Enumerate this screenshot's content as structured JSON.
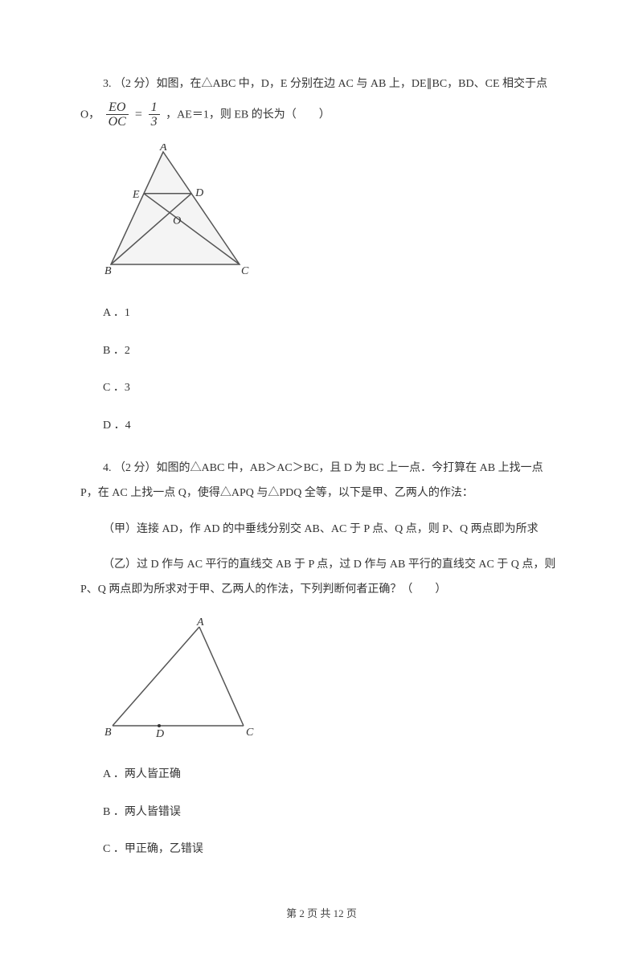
{
  "q3": {
    "line1": "3. （2 分）如图，在△ABC 中，D，E 分别在边 AC 与 AB 上，DE∥BC，BD、CE 相交于点",
    "line2_prefix": "O，",
    "line2_suffix": "，AE＝1，则 EB 的长为（　　）",
    "frac_left_num": "EO",
    "frac_left_den": "OC",
    "eq_sign": "=",
    "frac_right_num": "1",
    "frac_right_den": "3",
    "options": {
      "a": "A ．1",
      "b": "B ．2",
      "c": "C ．3",
      "d": "D ．4"
    },
    "figure": {
      "labels": {
        "A": "A",
        "B": "B",
        "C": "C",
        "D": "D",
        "E": "E",
        "O": "O"
      },
      "stroke": "#555",
      "fill": "#f4f4f4",
      "label_font": "italic 14px 'Times New Roman', serif"
    }
  },
  "q4": {
    "para1": "4. （2 分）如图的△ABC 中，AB＞AC＞BC，且 D 为 BC 上一点．今打算在 AB 上找一点 P，在 AC 上找一点 Q，使得△APQ 与△PDQ 全等，以下是甲、乙两人的作法：",
    "para2": "（甲）连接 AD，作 AD 的中垂线分别交 AB、AC 于 P 点、Q 点，则 P、Q 两点即为所求",
    "para3": "（乙）过 D 作与 AC 平行的直线交 AB 于 P 点，过 D 作与 AB 平行的直线交 AC 于 Q 点，则 P、Q 两点即为所求对于甲、乙两人的作法，下列判断何者正确？（　　）",
    "options": {
      "a": "A ．两人皆正确",
      "b": "B ．两人皆错误",
      "c": "C ．甲正确，乙错误"
    },
    "figure": {
      "labels": {
        "A": "A",
        "B": "B",
        "C": "C",
        "D": "D"
      },
      "stroke": "#555",
      "label_font": "italic 14px 'Times New Roman', serif"
    }
  },
  "footer": {
    "text": "第 2 页 共 12 页"
  }
}
